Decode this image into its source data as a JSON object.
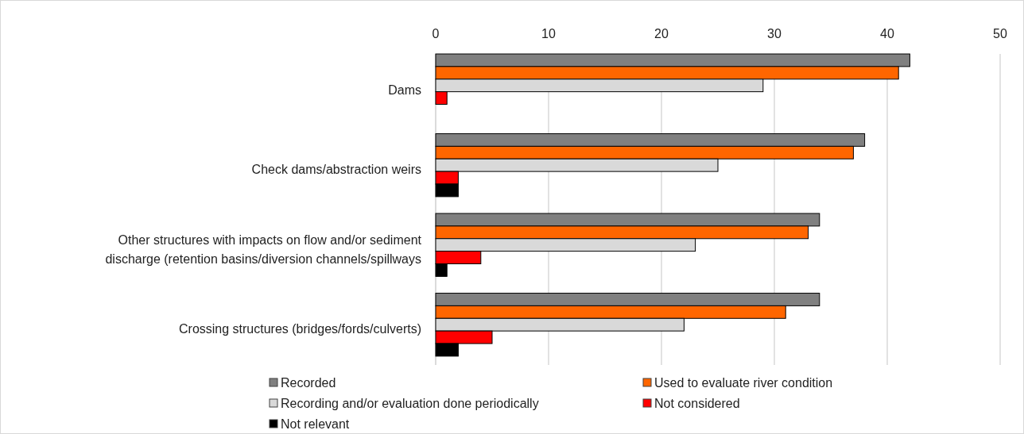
{
  "chart_data": {
    "type": "bar",
    "orientation": "horizontal",
    "categories": [
      "Dams",
      "Check dams/abstraction weirs",
      "Other structures with impacts on flow and/or sediment discharge (retention basins/diversion channels/spillways",
      "Crossing structures (bridges/fords/culverts)"
    ],
    "series": [
      {
        "name": "Recorded",
        "color": "#808080",
        "values": [
          42,
          38,
          34,
          34
        ]
      },
      {
        "name": "Used to evaluate river condition",
        "color": "#ff6600",
        "values": [
          41,
          37,
          33,
          31
        ]
      },
      {
        "name": "Recording and/or evaluation done periodically",
        "color": "#d9d9d9",
        "values": [
          29,
          25,
          23,
          22
        ]
      },
      {
        "name": "Not considered",
        "color": "#ff0000",
        "values": [
          1,
          2,
          4,
          5
        ]
      },
      {
        "name": "Not relevant",
        "color": "#000000",
        "values": [
          0,
          2,
          1,
          2
        ]
      }
    ],
    "xlim": [
      0,
      50
    ],
    "xticks": [
      0,
      10,
      20,
      30,
      40,
      50
    ],
    "grid": "x",
    "legend": "bottom"
  }
}
